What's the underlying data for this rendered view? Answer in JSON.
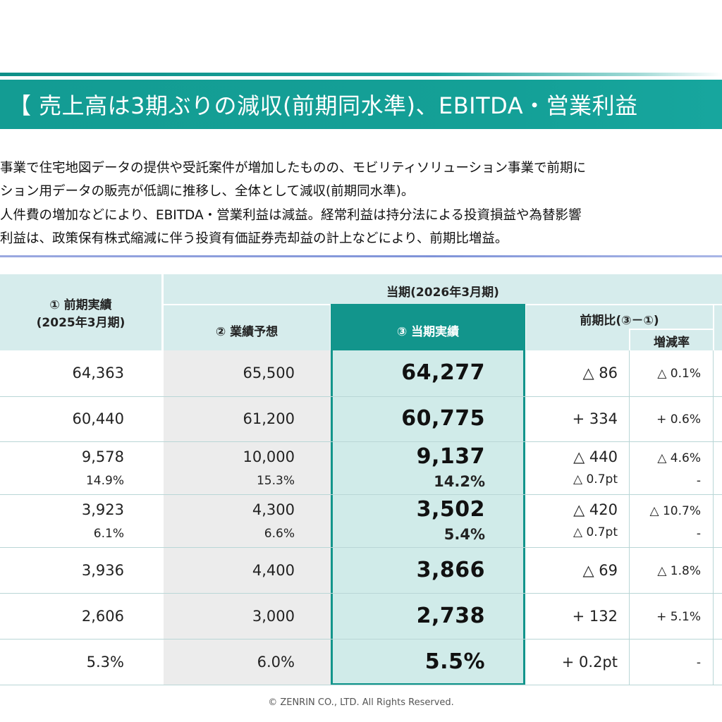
{
  "title": "【 売上高は3期ぶりの減収(前期同水準)、EBITDA・営業利益",
  "summary": [
    "事業で住宅地図データの提供や受託案件が増加したものの、モビリティソリューション事業で前期に",
    "ション用データの販売が低調に推移し、全体として減収(前期同水準)。",
    "人件費の増加などにより、EBITDA・営業利益は減益。経常利益は持分法による投資損益や為替影響",
    "利益は、政策保有株式縮減に伴う投資有価証券売却益の計上などにより、前期比増益。"
  ],
  "table": {
    "header": {
      "prev_label": "① 前期実績",
      "prev_period": "(2025年3月期)",
      "current_group": "当期(2026年3月期)",
      "forecast": "② 業績予想",
      "actual": "③ 当期実績",
      "yoy": "前期比(③－①)",
      "rate": "増減率"
    },
    "rows": [
      {
        "prev": "64,363",
        "forecast": "65,500",
        "actual": "64,277",
        "diff": "△ 86",
        "rate": "△ 0.1%"
      },
      {
        "prev": "60,440",
        "forecast": "61,200",
        "actual": "60,775",
        "diff": "+ 334",
        "rate": "+ 0.6%"
      },
      {
        "prev": "9,578",
        "prev_sub": "14.9%",
        "forecast": "10,000",
        "forecast_sub": "15.3%",
        "actual": "9,137",
        "actual_sub": "14.2%",
        "diff": "△ 440",
        "diff_sub": "△ 0.7pt",
        "rate": "△ 4.6%",
        "rate_sub": "-"
      },
      {
        "prev": "3,923",
        "prev_sub": "6.1%",
        "forecast": "4,300",
        "forecast_sub": "6.6%",
        "actual": "3,502",
        "actual_sub": "5.4%",
        "diff": "△ 420",
        "diff_sub": "△ 0.7pt",
        "rate": "△ 10.7%",
        "rate_sub": "-"
      },
      {
        "prev": "3,936",
        "forecast": "4,400",
        "actual": "3,866",
        "diff": "△ 69",
        "rate": "△ 1.8%"
      },
      {
        "prev": "2,606",
        "forecast": "3,000",
        "actual": "2,738",
        "diff": "+ 132",
        "rate": "+ 5.1%"
      },
      {
        "prev": "5.3%",
        "forecast": "6.0%",
        "actual": "5.5%",
        "diff": "+ 0.2pt",
        "rate": "-"
      }
    ]
  },
  "footer": "© ZENRIN CO., LTD. All Rights Reserved.",
  "colors": {
    "teal": "#139c93",
    "header_bg": "#d6ecec",
    "highlight_bg": "#d0ebe9",
    "highlight_border": "#12958c"
  }
}
